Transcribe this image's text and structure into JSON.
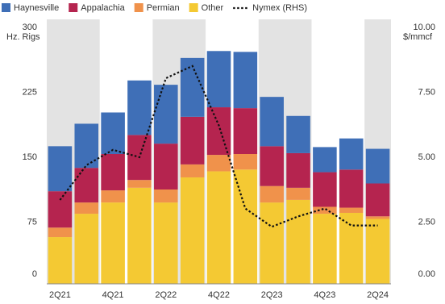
{
  "chart_data": {
    "type": "bar",
    "stacked": true,
    "categories": [
      "2Q21",
      null,
      "4Q21",
      null,
      "2Q22",
      null,
      "4Q22",
      null,
      "2Q23",
      null,
      "4Q23",
      null,
      "2Q24"
    ],
    "series": [
      {
        "name": "Haynesville",
        "color": "#3f6fb7",
        "values": [
          52,
          51,
          48,
          63,
          68,
          68,
          65,
          65,
          57,
          43,
          29,
          36,
          40
        ]
      },
      {
        "name": "Appalachia",
        "color": "#b5244f",
        "values": [
          42,
          40,
          42,
          52,
          53,
          55,
          55,
          53,
          46,
          40,
          40,
          44,
          38
        ]
      },
      {
        "name": "Permian",
        "color": "#f0924b",
        "values": [
          11,
          13,
          14,
          9,
          15,
          15,
          19,
          18,
          19,
          14,
          8,
          6,
          3
        ]
      },
      {
        "name": "Other",
        "color": "#f4c933",
        "values": [
          54,
          81,
          94,
          111,
          94,
          123,
          130,
          132,
          94,
          97,
          81,
          82,
          75
        ]
      },
      {
        "name": "Nymex (RHS)",
        "type": "line",
        "axis": "y2",
        "color": "#111111",
        "dashed": true,
        "values": [
          3.23,
          4.57,
          5.16,
          4.88,
          7.92,
          8.39,
          6.1,
          2.9,
          2.2,
          2.6,
          2.9,
          2.25,
          2.25
        ]
      }
    ],
    "y_label": "Hz. Rigs",
    "y2_label": "$/mmcf",
    "ylim": [
      0,
      300
    ],
    "yticks": [
      0,
      75,
      150,
      225,
      300
    ],
    "y2lim": [
      0,
      10
    ],
    "y2ticks": [
      {
        "value": 0,
        "label": "0.00"
      },
      {
        "value": 2.5,
        "label": "2.50"
      },
      {
        "value": 5,
        "label": "5.00"
      },
      {
        "value": 7.5,
        "label": "7.50"
      },
      {
        "value": 10,
        "label": "10.00"
      }
    ],
    "legend": "top"
  }
}
